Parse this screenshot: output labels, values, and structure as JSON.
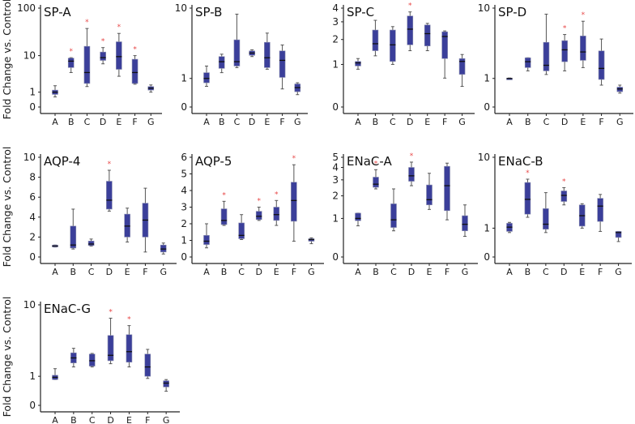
{
  "figure": {
    "ylabel": "Fold Change vs. Control",
    "box_color": "#3b3f9a",
    "box_edge_color": "#8c8fb0",
    "whisker_color": "#555555",
    "median_color": "#111111",
    "significance_color": "#e84a4a",
    "significance_marker": "*"
  },
  "chart_data": [
    {
      "type": "box",
      "title": "SP-A",
      "scale": "log1p",
      "ylim": [
        0,
        100
      ],
      "yticks": [
        0,
        1,
        10,
        100
      ],
      "categories": [
        "A",
        "B",
        "C",
        "D",
        "E",
        "F",
        "G"
      ],
      "boxes": [
        {
          "min": 0.6,
          "q1": 0.8,
          "median": 1.0,
          "q3": 1.2,
          "max": 1.7,
          "sig": false
        },
        {
          "min": 4.0,
          "q1": 5.3,
          "median": 7.5,
          "q3": 8.8,
          "max": 9.0,
          "sig": true
        },
        {
          "min": 1.6,
          "q1": 2.0,
          "median": 4.0,
          "q3": 16,
          "max": 38,
          "sig": true
        },
        {
          "min": 6.5,
          "q1": 7.8,
          "median": 9.0,
          "q3": 12,
          "max": 15,
          "sig": true
        },
        {
          "min": 3.2,
          "q1": 4.8,
          "median": 9.5,
          "q3": 20,
          "max": 30,
          "sig": true
        },
        {
          "min": 1.9,
          "q1": 2.0,
          "median": 4.0,
          "q3": 8.3,
          "max": 10,
          "sig": true
        },
        {
          "min": 1.0,
          "q1": 1.2,
          "median": 1.4,
          "q3": 1.6,
          "max": 1.8,
          "sig": false
        }
      ]
    },
    {
      "type": "box",
      "title": "SP-B",
      "scale": "log1p",
      "ylim": [
        0,
        10
      ],
      "yticks": [
        0,
        1,
        10
      ],
      "categories": [
        "A",
        "B",
        "C",
        "D",
        "E",
        "F",
        "G"
      ],
      "boxes": [
        {
          "min": 0.65,
          "q1": 0.8,
          "median": 1.0,
          "q3": 1.3,
          "max": 1.7,
          "sig": false
        },
        {
          "min": 1.3,
          "q1": 1.55,
          "median": 2.0,
          "q3": 2.4,
          "max": 2.6,
          "sig": false
        },
        {
          "min": 1.6,
          "q1": 1.7,
          "median": 2.0,
          "q3": 4.1,
          "max": 8.5,
          "sig": false
        },
        {
          "min": 2.4,
          "q1": 2.5,
          "median": 2.7,
          "q3": 2.9,
          "max": 3.0,
          "sig": false
        },
        {
          "min": 1.5,
          "q1": 1.6,
          "median": 2.3,
          "q3": 3.8,
          "max": 5.0,
          "sig": false
        },
        {
          "min": 0.55,
          "q1": 1.05,
          "median": 2.1,
          "q3": 2.9,
          "max": 3.5,
          "sig": false
        },
        {
          "min": 0.35,
          "q1": 0.45,
          "median": 0.6,
          "q3": 0.75,
          "max": 0.8,
          "sig": false
        }
      ]
    },
    {
      "type": "box",
      "title": "SP-C",
      "scale": "log1p",
      "ylim": [
        0,
        4
      ],
      "yticks": [
        0,
        1,
        2,
        3,
        4
      ],
      "categories": [
        "A",
        "B",
        "C",
        "D",
        "E",
        "F",
        "G"
      ],
      "boxes": [
        {
          "min": 0.85,
          "q1": 0.95,
          "median": 1.05,
          "q3": 1.1,
          "max": 1.2,
          "sig": false
        },
        {
          "min": 1.3,
          "q1": 1.5,
          "median": 1.8,
          "q3": 2.5,
          "max": 3.1,
          "sig": false
        },
        {
          "min": 1.0,
          "q1": 1.1,
          "median": 1.75,
          "q3": 2.5,
          "max": 2.7,
          "sig": false
        },
        {
          "min": 1.5,
          "q1": 1.75,
          "median": 2.55,
          "q3": 3.4,
          "max": 3.7,
          "sig": true
        },
        {
          "min": 1.5,
          "q1": 1.7,
          "median": 2.3,
          "q3": 2.8,
          "max": 2.9,
          "sig": false
        },
        {
          "min": 0.6,
          "q1": 1.2,
          "median": 2.15,
          "q3": 2.4,
          "max": 2.45,
          "sig": false
        },
        {
          "min": 0.4,
          "q1": 0.7,
          "median": 1.1,
          "q3": 1.2,
          "max": 1.35,
          "sig": false
        }
      ]
    },
    {
      "type": "box",
      "title": "SP-D",
      "scale": "log1p",
      "ylim": [
        0,
        10
      ],
      "yticks": [
        0,
        1,
        10
      ],
      "categories": [
        "A",
        "B",
        "C",
        "D",
        "E",
        "F",
        "G"
      ],
      "boxes": [
        {
          "min": 0.98,
          "q1": 0.99,
          "median": 1.0,
          "q3": 1.01,
          "max": 1.02,
          "sig": false
        },
        {
          "min": 1.4,
          "q1": 1.6,
          "median": 2.0,
          "q3": 2.3,
          "max": 2.3,
          "sig": false
        },
        {
          "min": 1.2,
          "q1": 1.4,
          "median": 1.75,
          "q3": 3.8,
          "max": 8.5,
          "sig": false
        },
        {
          "min": 1.4,
          "q1": 2.0,
          "median": 3.0,
          "q3": 4.0,
          "max": 4.8,
          "sig": true
        },
        {
          "min": 1.6,
          "q1": 2.1,
          "median": 2.8,
          "q3": 4.6,
          "max": 7.0,
          "sig": true
        },
        {
          "min": 0.7,
          "q1": 0.95,
          "median": 1.55,
          "q3": 2.9,
          "max": 4.2,
          "sig": false
        },
        {
          "min": 0.4,
          "q1": 0.45,
          "median": 0.55,
          "q3": 0.62,
          "max": 0.7,
          "sig": false
        }
      ]
    },
    {
      "type": "box",
      "title": "AQP-4",
      "scale": "linear",
      "ylim": [
        0,
        10
      ],
      "yticks": [
        0,
        2,
        4,
        6,
        8,
        10
      ],
      "categories": [
        "A",
        "B",
        "C",
        "D",
        "E",
        "F",
        "G"
      ],
      "boxes": [
        {
          "min": 1.0,
          "q1": 1.0,
          "median": 1.1,
          "q3": 1.2,
          "max": 1.2,
          "sig": false
        },
        {
          "min": 0.8,
          "q1": 0.9,
          "median": 1.2,
          "q3": 3.1,
          "max": 4.8,
          "sig": false
        },
        {
          "min": 1.1,
          "q1": 1.15,
          "median": 1.3,
          "q3": 1.6,
          "max": 1.8,
          "sig": false
        },
        {
          "min": 4.6,
          "q1": 4.8,
          "median": 5.7,
          "q3": 7.6,
          "max": 8.7,
          "sig": true
        },
        {
          "min": 1.5,
          "q1": 2.0,
          "median": 3.1,
          "q3": 4.3,
          "max": 4.9,
          "sig": false
        },
        {
          "min": 0.5,
          "q1": 2.0,
          "median": 3.7,
          "q3": 5.4,
          "max": 6.9,
          "sig": false
        },
        {
          "min": 0.3,
          "q1": 0.5,
          "median": 0.8,
          "q3": 1.2,
          "max": 1.4,
          "sig": false
        }
      ]
    },
    {
      "type": "box",
      "title": "AQP-5",
      "scale": "linear",
      "ylim": [
        0,
        6
      ],
      "yticks": [
        0,
        1,
        2,
        3,
        4,
        5,
        6
      ],
      "categories": [
        "A",
        "B",
        "C",
        "D",
        "E",
        "F",
        "G"
      ],
      "boxes": [
        {
          "min": 0.55,
          "q1": 0.75,
          "median": 0.95,
          "q3": 1.3,
          "max": 2.0,
          "sig": false
        },
        {
          "min": 1.9,
          "q1": 1.95,
          "median": 2.2,
          "q3": 2.9,
          "max": 3.35,
          "sig": true
        },
        {
          "min": 1.05,
          "q1": 1.1,
          "median": 1.3,
          "q3": 2.05,
          "max": 2.55,
          "sig": false
        },
        {
          "min": 2.2,
          "q1": 2.25,
          "median": 2.45,
          "q3": 2.75,
          "max": 3.0,
          "sig": true
        },
        {
          "min": 1.9,
          "q1": 2.2,
          "median": 2.55,
          "q3": 3.0,
          "max": 3.4,
          "sig": true
        },
        {
          "min": 0.95,
          "q1": 2.15,
          "median": 3.4,
          "q3": 4.5,
          "max": 5.55,
          "sig": true
        },
        {
          "min": 0.8,
          "q1": 0.95,
          "median": 1.05,
          "q3": 1.1,
          "max": 1.15,
          "sig": false
        }
      ]
    },
    {
      "type": "box",
      "title": "ENaC-A",
      "scale": "log1p",
      "ylim": [
        0,
        5
      ],
      "yticks": [
        0,
        1,
        2,
        3,
        4,
        5
      ],
      "categories": [
        "A",
        "B",
        "C",
        "D",
        "E",
        "F",
        "G"
      ],
      "boxes": [
        {
          "min": 0.75,
          "q1": 0.92,
          "median": 1.0,
          "q3": 1.2,
          "max": 1.2,
          "sig": false
        },
        {
          "min": 2.4,
          "q1": 2.5,
          "median": 2.7,
          "q3": 3.2,
          "max": 3.8,
          "sig": true
        },
        {
          "min": 0.6,
          "q1": 0.7,
          "median": 0.95,
          "q3": 1.6,
          "max": 2.4,
          "sig": false
        },
        {
          "min": 2.6,
          "q1": 2.9,
          "median": 3.3,
          "q3": 4.0,
          "max": 4.5,
          "sig": true
        },
        {
          "min": 1.35,
          "q1": 1.55,
          "median": 1.8,
          "q3": 2.65,
          "max": 3.5,
          "sig": false
        },
        {
          "min": 0.95,
          "q1": 1.3,
          "median": 2.6,
          "q3": 4.1,
          "max": 4.4,
          "sig": false
        },
        {
          "min": 0.45,
          "q1": 0.6,
          "median": 0.8,
          "q3": 1.1,
          "max": 1.55,
          "sig": false
        }
      ]
    },
    {
      "type": "box",
      "title": "ENaC-B",
      "scale": "log1p",
      "ylim": [
        0,
        10
      ],
      "yticks": [
        0,
        1,
        10
      ],
      "categories": [
        "A",
        "B",
        "C",
        "D",
        "E",
        "F",
        "G"
      ],
      "boxes": [
        {
          "min": 0.8,
          "q1": 0.85,
          "median": 1.05,
          "q3": 1.25,
          "max": 1.3,
          "sig": false
        },
        {
          "min": 1.6,
          "q1": 1.8,
          "median": 3.0,
          "q3": 5.0,
          "max": 5.5,
          "sig": true
        },
        {
          "min": 0.8,
          "q1": 0.95,
          "median": 1.2,
          "q3": 2.2,
          "max": 3.7,
          "sig": false
        },
        {
          "min": 2.5,
          "q1": 2.8,
          "median": 3.4,
          "q3": 3.9,
          "max": 4.3,
          "sig": true
        },
        {
          "min": 1.0,
          "q1": 1.1,
          "median": 1.7,
          "q3": 2.5,
          "max": 2.6,
          "sig": false
        },
        {
          "min": 0.85,
          "q1": 1.35,
          "median": 2.4,
          "q3": 3.1,
          "max": 3.5,
          "sig": false
        },
        {
          "min": 0.45,
          "q1": 0.6,
          "median": 0.8,
          "q3": 0.85,
          "max": 0.85,
          "sig": false
        }
      ]
    },
    {
      "type": "box",
      "title": "ENaC-G",
      "scale": "log1p",
      "ylim": [
        0,
        10
      ],
      "yticks": [
        0,
        1,
        10
      ],
      "categories": [
        "A",
        "B",
        "C",
        "D",
        "E",
        "F",
        "G"
      ],
      "boxes": [
        {
          "min": 0.85,
          "q1": 0.85,
          "median": 0.95,
          "q3": 1.05,
          "max": 1.4,
          "sig": false
        },
        {
          "min": 1.5,
          "q1": 1.75,
          "median": 2.1,
          "q3": 2.5,
          "max": 2.9,
          "sig": false
        },
        {
          "min": 1.5,
          "q1": 1.55,
          "median": 1.9,
          "q3": 2.4,
          "max": 2.45,
          "sig": false
        },
        {
          "min": 1.7,
          "q1": 1.9,
          "median": 2.3,
          "q3": 4.3,
          "max": 7.0,
          "sig": true
        },
        {
          "min": 1.5,
          "q1": 1.8,
          "median": 2.6,
          "q3": 4.4,
          "max": 5.7,
          "sig": true
        },
        {
          "min": 0.9,
          "q1": 1.0,
          "median": 1.5,
          "q3": 2.4,
          "max": 2.8,
          "sig": false
        },
        {
          "min": 0.4,
          "q1": 0.55,
          "median": 0.7,
          "q3": 0.8,
          "max": 0.85,
          "sig": false
        }
      ]
    }
  ]
}
